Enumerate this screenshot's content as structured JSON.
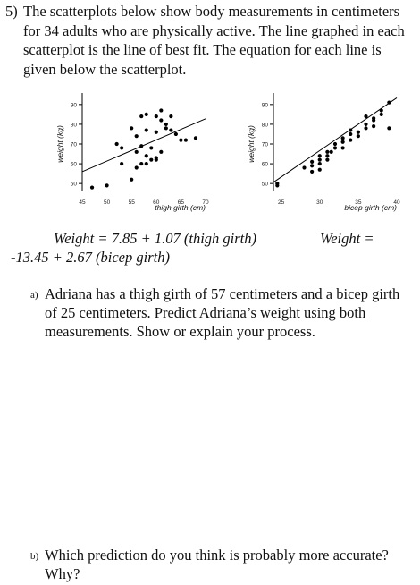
{
  "problem": {
    "number": "5)",
    "text": "The scatterplots below show body measurements in centimeters for 34 adults who are physically active. The line graphed in each scatterplot is the line of best fit. The equation for each line is given below the scatterplot."
  },
  "chart_data": [
    {
      "type": "scatter",
      "title": "",
      "xlabel": "thigh girth (cm)",
      "ylabel": "weight (kg)",
      "xlim": [
        45,
        70
      ],
      "ylim": [
        46,
        94
      ],
      "xticks": [
        "45",
        "50",
        "55",
        "60",
        "65",
        "70"
      ],
      "yticks": [
        "50",
        "60",
        "70",
        "80",
        "90"
      ],
      "line": {
        "intercept": 7.85,
        "slope": 1.07
      },
      "points": [
        [
          47,
          48
        ],
        [
          50,
          49
        ],
        [
          52,
          70
        ],
        [
          53,
          68
        ],
        [
          55,
          52
        ],
        [
          53,
          60
        ],
        [
          56,
          58
        ],
        [
          57,
          60
        ],
        [
          58,
          60
        ],
        [
          59,
          62
        ],
        [
          60,
          63
        ],
        [
          58,
          64
        ],
        [
          56,
          74
        ],
        [
          58,
          77
        ],
        [
          57,
          84
        ],
        [
          58,
          85
        ],
        [
          60,
          84
        ],
        [
          61,
          87
        ],
        [
          62,
          78
        ],
        [
          62,
          80
        ],
        [
          63,
          77
        ],
        [
          64,
          75
        ],
        [
          65,
          72
        ],
        [
          66,
          72
        ],
        [
          68,
          73
        ],
        [
          60,
          62
        ],
        [
          61,
          66
        ],
        [
          59,
          68
        ],
        [
          60,
          76
        ],
        [
          55,
          78
        ],
        [
          61,
          82
        ],
        [
          56,
          66
        ],
        [
          57,
          69
        ],
        [
          63,
          84
        ]
      ]
    },
    {
      "type": "scatter",
      "title": "",
      "xlabel": "bicep girth (cm)",
      "ylabel": "weight (kg)",
      "xlim": [
        24,
        40
      ],
      "ylim": [
        46,
        94
      ],
      "xticks": [
        "25",
        "30",
        "35",
        "40"
      ],
      "yticks": [
        "50",
        "60",
        "70",
        "80",
        "90"
      ],
      "line": {
        "intercept": -13.45,
        "slope": 2.67
      },
      "points": [
        [
          24.5,
          49
        ],
        [
          24.5,
          50
        ],
        [
          28,
          58
        ],
        [
          29,
          61
        ],
        [
          29,
          59
        ],
        [
          30,
          62
        ],
        [
          30,
          64
        ],
        [
          31,
          62
        ],
        [
          31,
          64
        ],
        [
          31.5,
          66
        ],
        [
          32,
          68
        ],
        [
          32,
          70
        ],
        [
          33,
          73
        ],
        [
          33,
          71
        ],
        [
          34,
          72
        ],
        [
          34,
          75
        ],
        [
          34,
          77
        ],
        [
          35,
          76
        ],
        [
          36,
          78
        ],
        [
          36,
          80
        ],
        [
          37,
          82
        ],
        [
          37,
          83
        ],
        [
          38,
          87
        ],
        [
          38,
          85
        ],
        [
          39,
          78
        ],
        [
          39,
          91
        ],
        [
          36,
          84
        ],
        [
          33,
          68
        ],
        [
          30,
          60
        ],
        [
          29,
          56
        ],
        [
          35,
          74
        ],
        [
          37,
          79
        ],
        [
          31,
          66
        ],
        [
          30,
          57
        ]
      ]
    }
  ],
  "equations": {
    "thigh": "Weight = 7.85 + 1.07 (thigh girth)",
    "bicep_first": "Weight =",
    "bicep_second": "-13.45 + 2.67 (bicep girth)"
  },
  "questions": [
    {
      "label": "a)",
      "text": "Adriana has a thigh girth of 57 centimeters and a bicep girth of 25 centimeters. Predict Adriana’s weight using both measurements. Show or explain your process."
    },
    {
      "label": "b)",
      "text": "Which prediction do you think is probably more accurate? Why?"
    }
  ]
}
